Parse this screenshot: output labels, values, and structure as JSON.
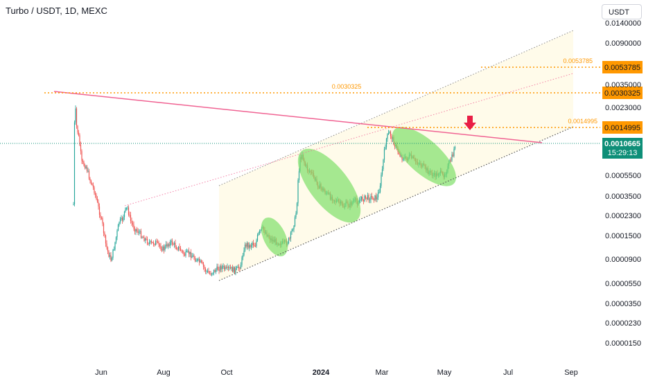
{
  "header": {
    "title": "Turbo / USDT, 1D, MEXC",
    "currency_button": "USDT"
  },
  "chart_data": {
    "type": "candlestick",
    "y_scale": "log",
    "x_ticks": [
      "Jun",
      "Aug",
      "Oct",
      "2024",
      "Mar",
      "May",
      "Jul",
      "Sep"
    ],
    "y_ticks": [
      "0.0140000",
      "0.0090000",
      "0.0035000",
      "0.0023000",
      "0.0005500",
      "0.0003500",
      "0.0002300",
      "0.0001500",
      "0.0000900",
      "0.0000550",
      "0.0000350",
      "0.0000230",
      "0.0000150"
    ],
    "current_price": "0.0010665",
    "countdown": "15:29:13",
    "levels": [
      {
        "label": "0.0053785",
        "tag": "0.0053785"
      },
      {
        "label": "0.0030325",
        "tag": "0.0030325"
      },
      {
        "label": "0.0014995",
        "tag": "0.0014995"
      }
    ],
    "colors": {
      "up": "#26a69a",
      "down": "#ef5350",
      "level": "#ff9800",
      "trendline": "#f06292",
      "channel_fill": "#fffbea",
      "ellipse": "#7fe06a",
      "price_tag": "#0e8f78",
      "arrow": "#e91e45"
    }
  }
}
